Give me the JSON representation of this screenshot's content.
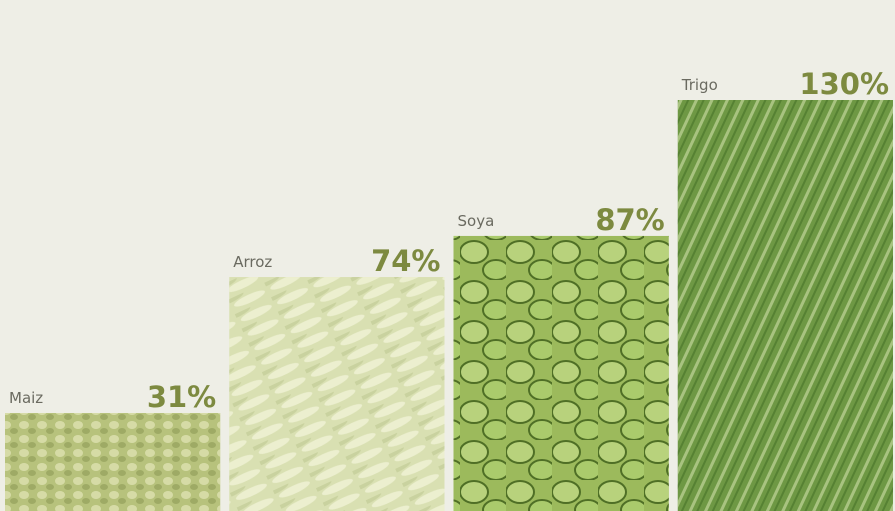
{
  "chart_data": {
    "type": "bar",
    "categories": [
      "Maiz",
      "Arroz",
      "Soya",
      "Trigo"
    ],
    "values": [
      31,
      74,
      87,
      130
    ],
    "value_labels": [
      "31%",
      "74%",
      "87%",
      "130%"
    ],
    "colors": [
      "#b7c27c",
      "#d9e0b2",
      "#9cba5c",
      "#6e9844"
    ]
  }
}
